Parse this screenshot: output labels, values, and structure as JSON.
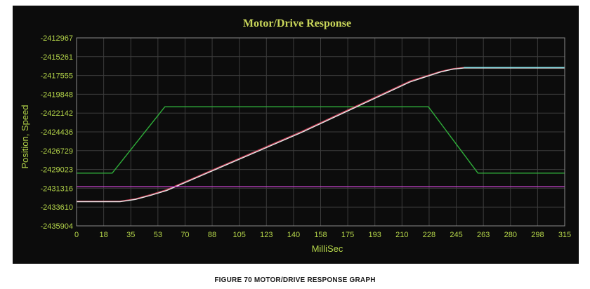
{
  "chart_data": {
    "type": "line",
    "title": "Motor/Drive Response",
    "xlabel": "MilliSec",
    "ylabel": "Position, Speed",
    "xlim": [
      0,
      315
    ],
    "ylim": [
      -2435904,
      -2412967
    ],
    "x_ticks": [
      "0",
      "18",
      "35",
      "53",
      "70",
      "88",
      "105",
      "123",
      "140",
      "158",
      "175",
      "193",
      "210",
      "228",
      "245",
      "263",
      "280",
      "298",
      "315"
    ],
    "y_ticks": [
      "-2412967",
      "-2415261",
      "-2417555",
      "-2419848",
      "-2422142",
      "-2424436",
      "-2426729",
      "-2429023",
      "-2431316",
      "-2433610",
      "-2435904"
    ],
    "grid": true,
    "series": [
      {
        "color": "#2fae3a",
        "x": [
          0,
          23,
          57,
          227,
          259,
          315
        ],
        "y": [
          -2429470,
          -2429470,
          -2421370,
          -2421370,
          -2429470,
          -2429470
        ]
      },
      {
        "color": "#c9435a",
        "x": [
          0,
          28,
          38,
          48,
          58,
          145,
          215,
          225,
          235,
          243,
          250,
          315
        ],
        "y": [
          -2432890,
          -2432890,
          -2432600,
          -2432080,
          -2431500,
          -2424400,
          -2418250,
          -2417650,
          -2417050,
          -2416720,
          -2416580,
          -2416580
        ]
      },
      {
        "color": "#e8e8e8",
        "x": [
          0,
          28,
          38,
          48,
          58,
          145,
          215,
          225,
          235,
          243,
          250,
          315
        ],
        "y": [
          -2432960,
          -2432960,
          -2432680,
          -2432170,
          -2431600,
          -2424520,
          -2418360,
          -2417730,
          -2417120,
          -2416780,
          -2416640,
          -2416640
        ]
      },
      {
        "color": "#7fe0e8",
        "x": [
          250,
          315
        ],
        "y": [
          -2416580,
          -2416580
        ]
      },
      {
        "color": "#c040c8",
        "x": [
          0,
          315
        ],
        "y": [
          -2431130,
          -2431130
        ]
      }
    ]
  },
  "caption": "FIGURE 70 MOTOR/DRIVE RESPONSE GRAPH"
}
